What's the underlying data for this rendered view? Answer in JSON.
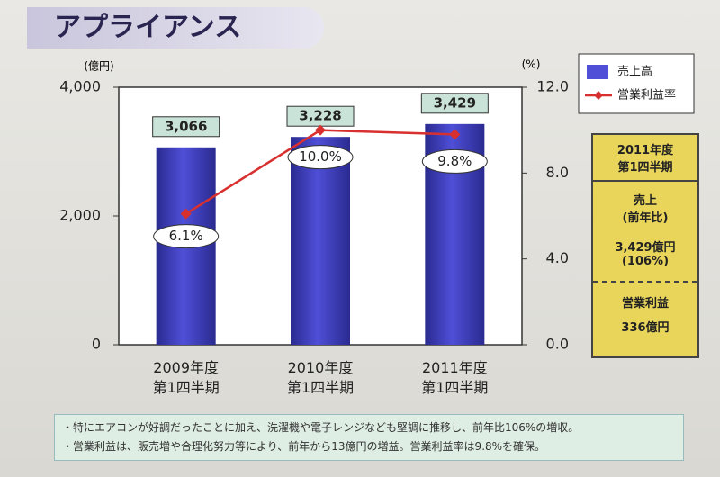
{
  "slide_title": "アプライアンス",
  "chart_data": {
    "type": "bar",
    "categories": [
      "2009年度\n第1四半期",
      "2010年度\n第1四半期",
      "2011年度\n第1四半期"
    ],
    "y_label": "(億円)",
    "y2_label": "(%)",
    "ylim": [
      0,
      4000
    ],
    "yticks": [
      0,
      {
        "value": 2000,
        "label": "2,000"
      },
      {
        "value": 4000,
        "label": "4,000"
      }
    ],
    "y2lim": [
      0,
      12
    ],
    "y2ticks": [
      {
        "value": 0,
        "label": "0.0"
      },
      {
        "value": 4,
        "label": "4.0"
      },
      {
        "value": 8,
        "label": "8.0"
      },
      {
        "value": 12,
        "label": "12.0"
      }
    ],
    "series": [
      {
        "name": "売上高",
        "type": "bar",
        "color": "#4f4fd8",
        "values": [
          3066,
          3228,
          3429
        ],
        "value_labels": [
          "3,066",
          "3,228",
          "3,429"
        ]
      },
      {
        "name": "営業利益率",
        "type": "line",
        "axis": "y2",
        "color": "#d8302f",
        "values": [
          6.1,
          10.0,
          9.8
        ],
        "value_labels": [
          "6.1%",
          "10.0%",
          "9.8%"
        ]
      }
    ]
  },
  "summary": {
    "period": "2011年度\n第1四半期",
    "sales_label": "売上",
    "sales_sub": "(前年比)",
    "sales_value": "3,429億円",
    "sales_ratio": "(106%)",
    "profit_label": "営業利益",
    "profit_value": "336億円"
  },
  "notes": [
    "・特にエアコンが好調だったことに加え、洗濯機や電子レンジなども堅調に推移し、前年比106%の増収。",
    "・営業利益は、販売増や合理化努力等により、前年から13億円の増益。営業利益率は9.8%を確保。"
  ]
}
